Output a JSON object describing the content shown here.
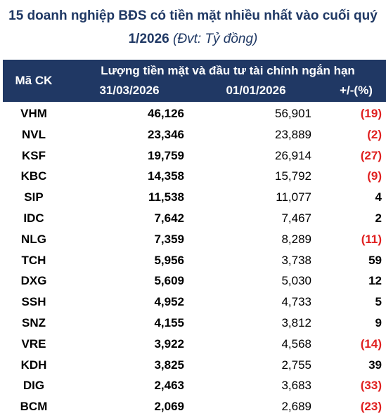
{
  "header": {
    "title": "15 doanh nghiệp BĐS có tiền mặt nhiều nhất vào cuối quý 1/2026",
    "unit": "(Đvt: Tỷ đồng)"
  },
  "table": {
    "columns": {
      "code": "Mã CK",
      "group": "Lượng tiền mặt và đầu tư tài chính ngắn hạn",
      "date1": "31/03/2026",
      "date2": "01/01/2026",
      "change": "+/-(%)"
    },
    "rows": [
      [
        "VHM",
        "46,126",
        "56,901",
        "(19)"
      ],
      [
        "NVL",
        "23,346",
        "23,889",
        "(2)"
      ],
      [
        "KSF",
        "19,759",
        "26,914",
        "(27)"
      ],
      [
        "KBC",
        "14,358",
        "15,792",
        "(9)"
      ],
      [
        "SIP",
        "11,538",
        "11,077",
        "4"
      ],
      [
        "IDC",
        "7,642",
        "7,467",
        "2"
      ],
      [
        "NLG",
        "7,359",
        "8,289",
        "(11)"
      ],
      [
        "TCH",
        "5,956",
        "3,738",
        "59"
      ],
      [
        "DXG",
        "5,609",
        "5,030",
        "12"
      ],
      [
        "SSH",
        "4,952",
        "4,733",
        "5"
      ],
      [
        "SNZ",
        "4,155",
        "3,812",
        "9"
      ],
      [
        "VRE",
        "3,922",
        "4,568",
        "(14)"
      ],
      [
        "KDH",
        "3,825",
        "2,755",
        "39"
      ],
      [
        "DIG",
        "2,463",
        "3,683",
        "(33)"
      ],
      [
        "BCM",
        "2,069",
        "2,689",
        "(23)"
      ]
    ]
  }
}
